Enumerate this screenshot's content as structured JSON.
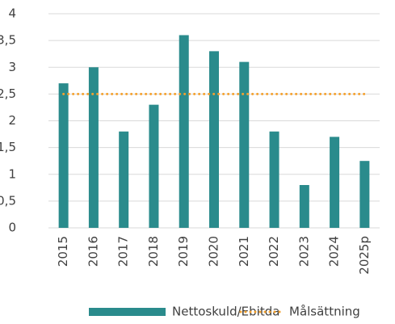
{
  "chart_data": {
    "type": "bar",
    "categories": [
      "2015",
      "2016",
      "2017",
      "2018",
      "2019",
      "2020",
      "2021",
      "2022",
      "2023",
      "2024",
      "2025p"
    ],
    "series": [
      {
        "name": "Nettoskuld/Ebitda",
        "type": "bar",
        "color": "#2a8b8c",
        "values": [
          2.7,
          3.0,
          1.8,
          2.3,
          3.6,
          3.3,
          3.1,
          1.8,
          0.8,
          1.7,
          1.25
        ]
      },
      {
        "name": "Målsättning",
        "type": "line",
        "color": "#f4a12f",
        "values": [
          2.5,
          2.5,
          2.5,
          2.5,
          2.5,
          2.5,
          2.5,
          2.5,
          2.5,
          2.5,
          2.5
        ]
      }
    ],
    "ylim": [
      0,
      4
    ],
    "yticks": [
      0,
      {
        "value": 0.5,
        "label": "0,5"
      },
      1,
      {
        "value": 1.5,
        "label": "1,5"
      },
      2,
      {
        "value": 2.5,
        "label": "2,5"
      },
      3,
      {
        "value": 3.5,
        "label": "3,5"
      },
      4
    ],
    "grid": true,
    "legend": "bottom"
  }
}
